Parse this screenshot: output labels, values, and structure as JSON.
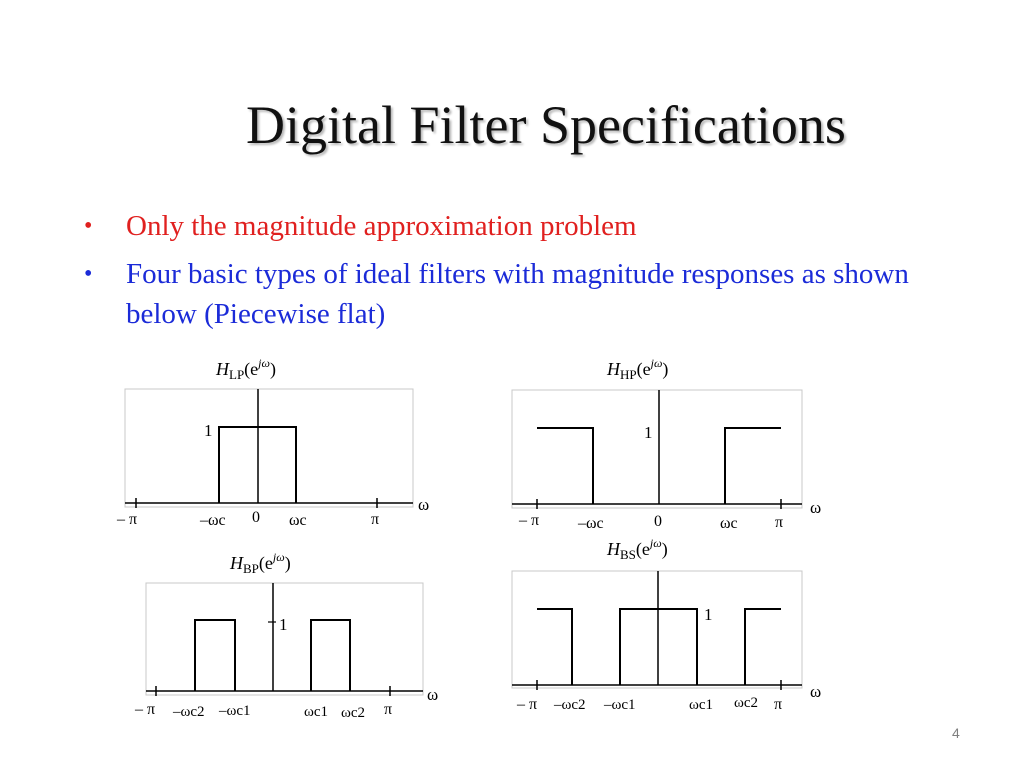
{
  "title": "Digital Filter Specifications",
  "bullets": [
    {
      "text": "Only the magnitude approximation problem",
      "color": "#e0201f"
    },
    {
      "text": "Four basic types of ideal filters with magnitude responses as shown below (Piecewise flat)",
      "color": "#1b2bd8"
    }
  ],
  "plots": {
    "lowpass": {
      "y_label": {
        "h": "H",
        "sub": "LP",
        "arg": "(e",
        "sup": "jω",
        "close": ")"
      },
      "amplitude_label": "1",
      "axis_label": "ω",
      "ticks": [
        "– π",
        "–ωc",
        "0",
        "ωc",
        "π"
      ],
      "bands": [
        "–ωc",
        "ωc"
      ]
    },
    "highpass": {
      "y_label": {
        "h": "H",
        "sub": "HP",
        "arg": "(e",
        "sup": "jω",
        "close": ")"
      },
      "amplitude_label": "1",
      "axis_label": "ω",
      "ticks": [
        "– π",
        "–ωc",
        "0",
        "ωc",
        "π"
      ],
      "bands": [
        "–π … –ωc",
        "ωc … π"
      ]
    },
    "bandpass": {
      "y_label": {
        "h": "H",
        "sub": "BP",
        "arg": "(e",
        "sup": "jω",
        "close": ")"
      },
      "amplitude_label": "1",
      "axis_label": "ω",
      "ticks": [
        "– π",
        "–ωc2",
        "–ωc1",
        "ωc1",
        "ωc2",
        "π"
      ],
      "bands": [
        "–ωc2 … –ωc1",
        "ωc1 … ωc2"
      ]
    },
    "bandstop": {
      "y_label": {
        "h": "H",
        "sub": "BS",
        "arg": "(e",
        "sup": "jω",
        "close": ")"
      },
      "amplitude_label": "1",
      "axis_label": "ω",
      "ticks": [
        "– π",
        "–ωc2",
        "–ωc1",
        "ωc1",
        "ωc2",
        "π"
      ],
      "bands": [
        "–π … –ωc2",
        "–ωc1 … ωc1",
        "ωc2 … π"
      ]
    }
  },
  "page_number": "4"
}
